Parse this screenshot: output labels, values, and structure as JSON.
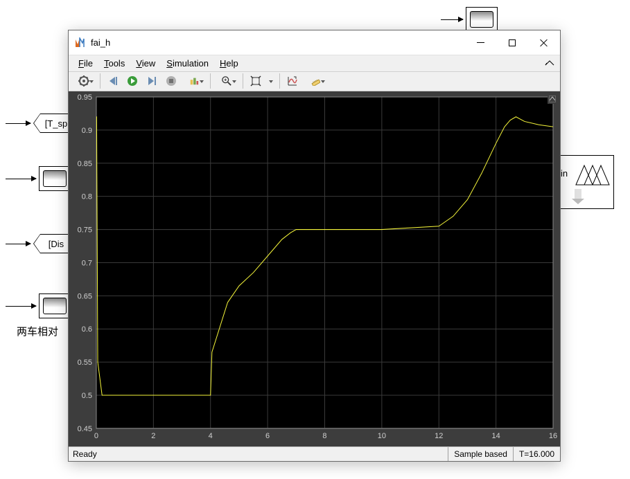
{
  "background": {
    "labels": {
      "t_sp": "[T_sp",
      "dis": "[Dis",
      "relative": "两车相对",
      "in": "in"
    }
  },
  "window": {
    "title": "fai_h"
  },
  "menu": {
    "file": "File",
    "tools": "Tools",
    "view": "View",
    "simulation": "Simulation",
    "help": "Help"
  },
  "status": {
    "ready": "Ready",
    "mode": "Sample based",
    "time": "T=16.000"
  },
  "chart": {
    "type": "line",
    "background_color": "#000000",
    "panel_color": "#3d3d3d",
    "grid_color": "#3a3a3a",
    "axis_color": "#888888",
    "tick_color": "#d0d0d0",
    "line_color": "#f5f53a",
    "line_width": 1,
    "tick_fontsize": 11,
    "xlim": [
      0,
      16
    ],
    "ylim": [
      0.45,
      0.95
    ],
    "xtick_step": 2,
    "ytick_step": 0.05,
    "xticks": [
      0,
      2,
      4,
      6,
      8,
      10,
      12,
      14,
      16
    ],
    "yticks": [
      0.45,
      0.5,
      0.55,
      0.6,
      0.65,
      0.7,
      0.75,
      0.8,
      0.85,
      0.9,
      0.95
    ],
    "series": {
      "x": [
        0,
        0.01,
        0.05,
        0.2,
        4.0,
        4.05,
        4.6,
        5.0,
        5.5,
        6.0,
        6.5,
        6.8,
        7.0,
        8.0,
        10.0,
        12.0,
        12.5,
        13.0,
        13.5,
        14.0,
        14.3,
        14.5,
        14.7,
        15.0,
        15.5,
        16.0
      ],
      "y": [
        0.92,
        0.92,
        0.55,
        0.5,
        0.5,
        0.565,
        0.64,
        0.665,
        0.685,
        0.71,
        0.735,
        0.745,
        0.75,
        0.75,
        0.75,
        0.755,
        0.77,
        0.795,
        0.835,
        0.88,
        0.905,
        0.915,
        0.92,
        0.913,
        0.908,
        0.905
      ]
    }
  },
  "colors": {
    "window_bg": "#f0f0f0",
    "titlebar_bg": "#ffffff",
    "border": "#6a6a6a"
  }
}
